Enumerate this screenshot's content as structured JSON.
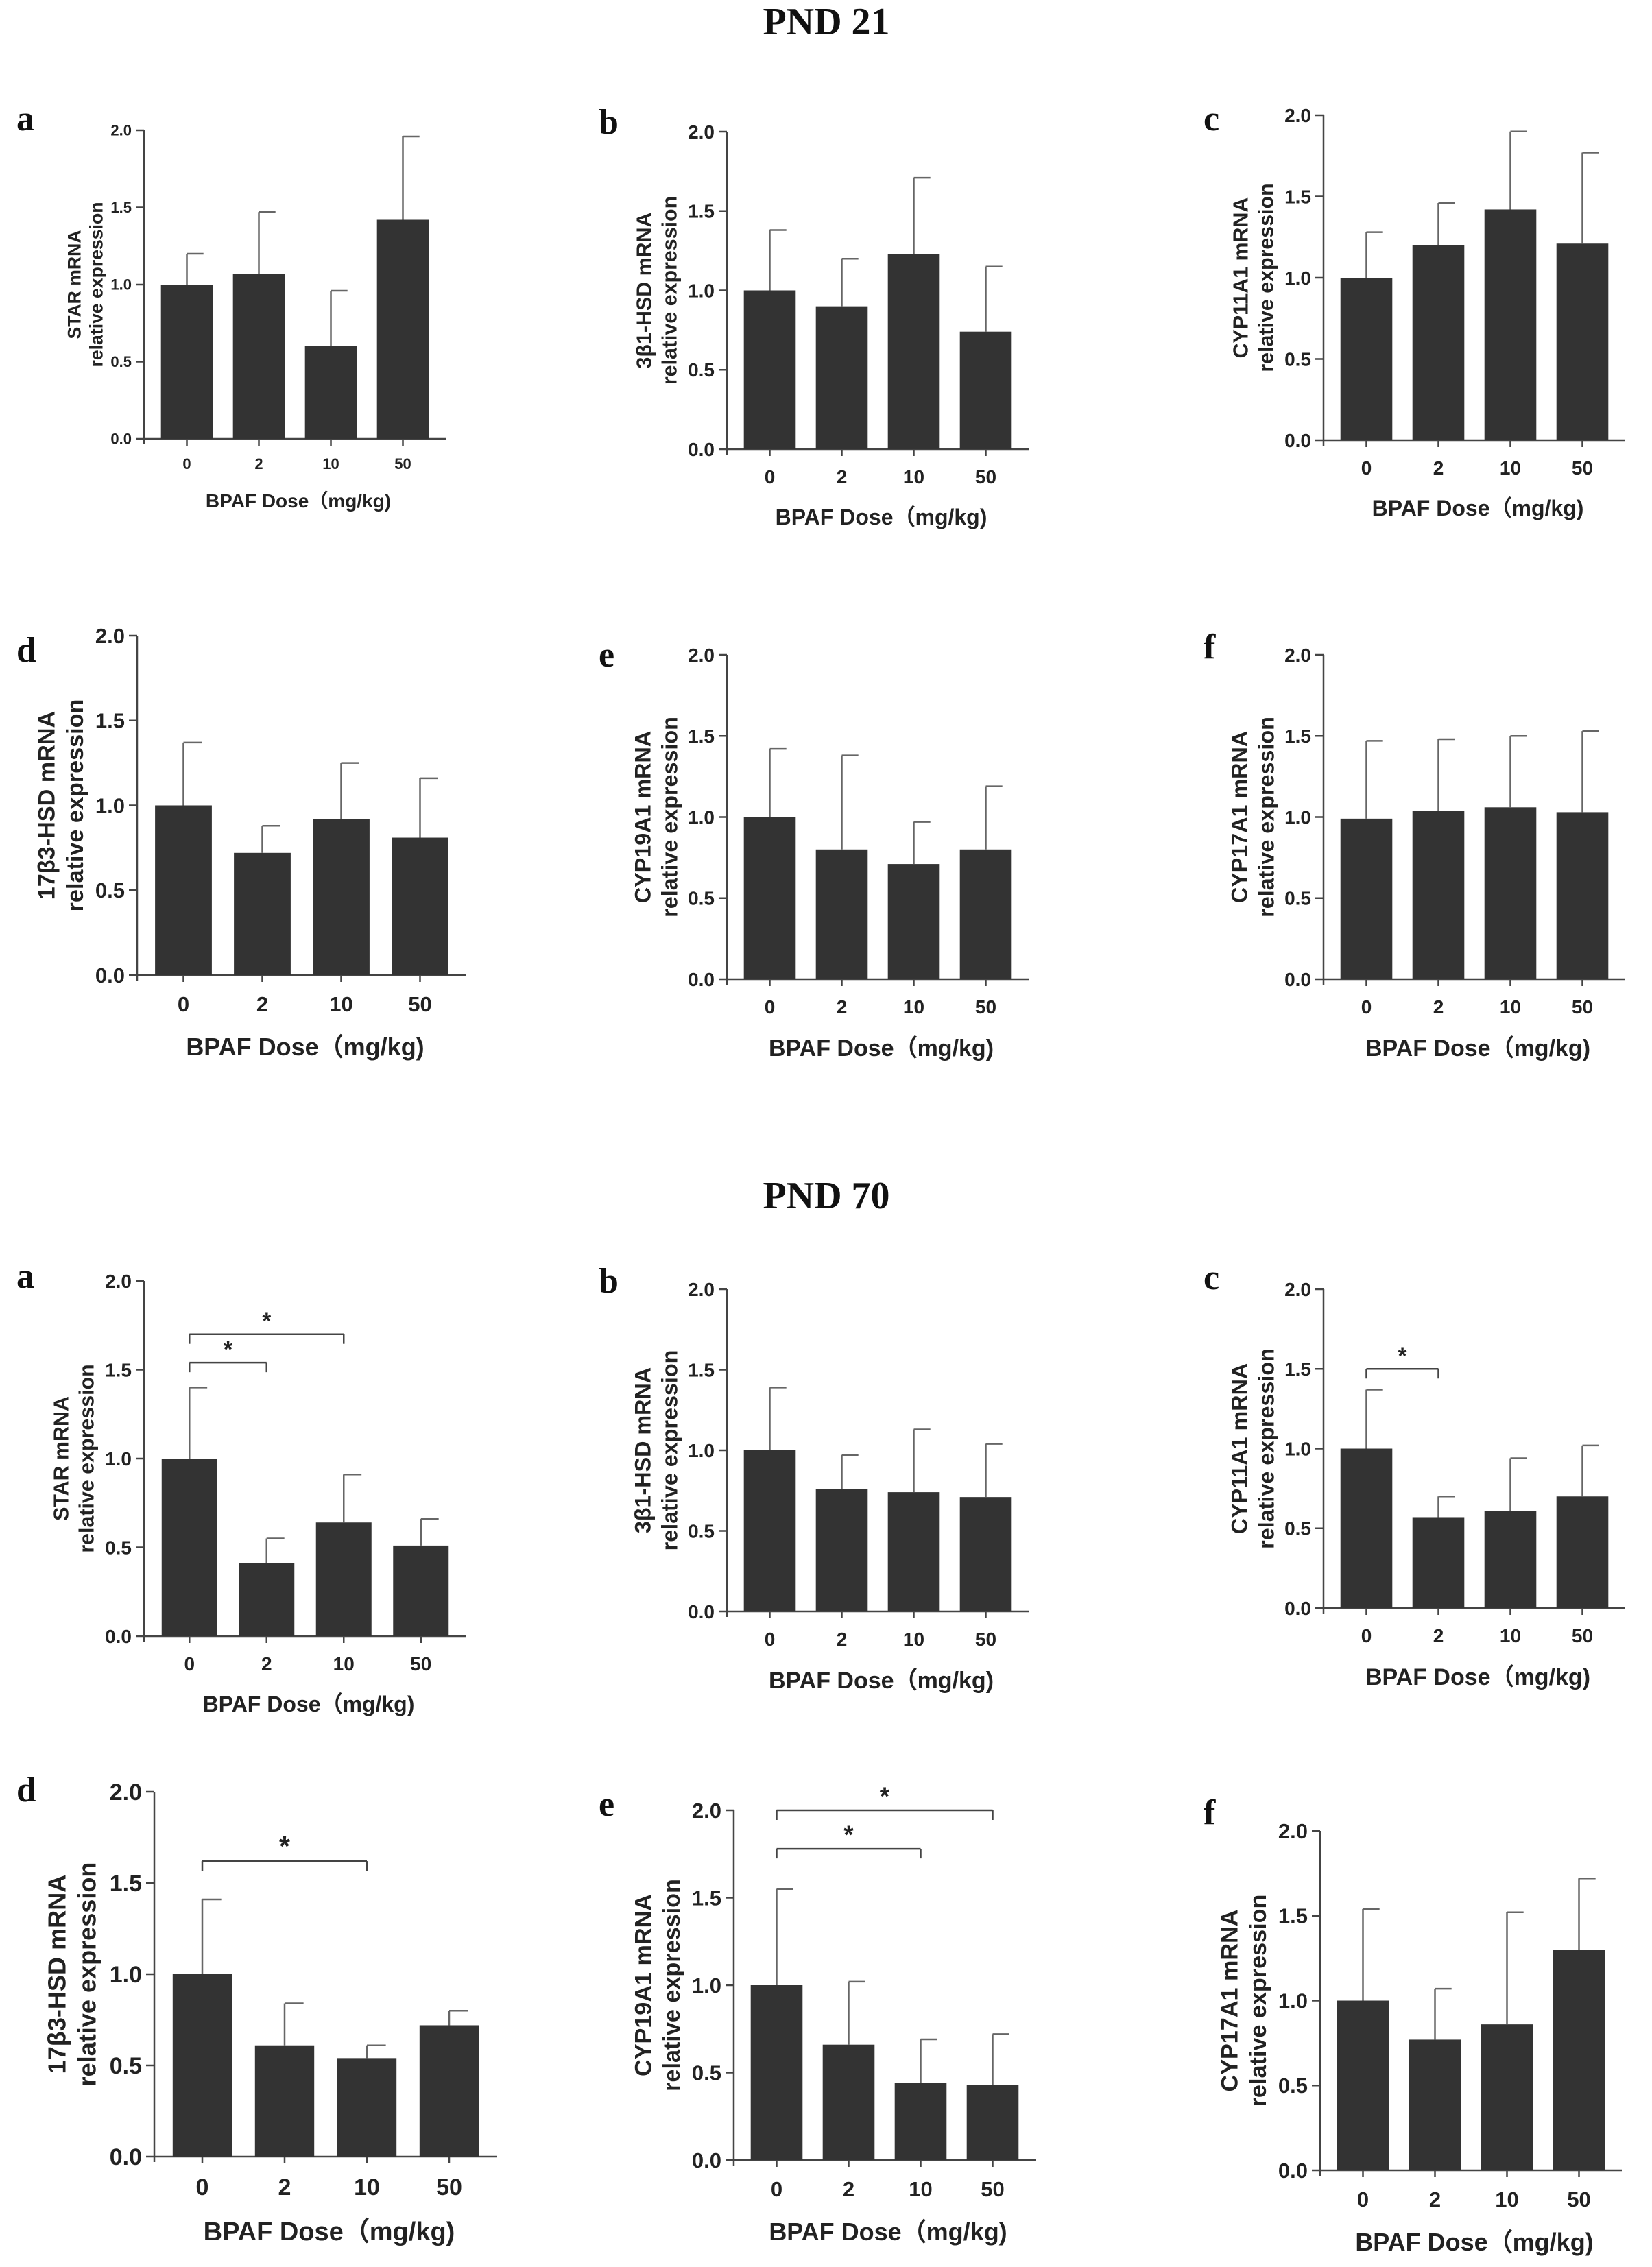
{
  "sections": [
    {
      "title": "PND 21"
    },
    {
      "title": "PND 70"
    }
  ],
  "colors": {
    "bar": "#333333",
    "axis": "#444444",
    "error": "#666666",
    "text": "#222222"
  },
  "chart_data": [
    {
      "type": "bar",
      "section": "PND 21",
      "letter": "a",
      "ylabel": [
        "STAR mRNA",
        "relative expression"
      ],
      "xlabel": "BPAF Dose（mg/kg)",
      "categories": [
        "0",
        "2",
        "10",
        "50"
      ],
      "values": [
        1.0,
        1.07,
        0.6,
        1.42
      ],
      "errors": [
        0.2,
        0.4,
        0.36,
        0.54
      ],
      "ylim": [
        0,
        2
      ],
      "yticks": [
        "0.0",
        "0.5",
        "1.0",
        "1.5",
        "2.0"
      ],
      "significance": []
    },
    {
      "type": "bar",
      "section": "PND 21",
      "letter": "b",
      "ylabel": [
        "3β1-HSD mRNA",
        "relative expression"
      ],
      "xlabel": "BPAF Dose（mg/kg)",
      "categories": [
        "0",
        "2",
        "10",
        "50"
      ],
      "values": [
        1.0,
        0.9,
        1.23,
        0.74
      ],
      "errors": [
        0.38,
        0.3,
        0.48,
        0.41
      ],
      "ylim": [
        0,
        2
      ],
      "yticks": [
        "0.0",
        "0.5",
        "1.0",
        "1.5",
        "2.0"
      ],
      "significance": []
    },
    {
      "type": "bar",
      "section": "PND 21",
      "letter": "c",
      "ylabel": [
        "CYP11A1 mRNA",
        "relative expression"
      ],
      "xlabel": "BPAF Dose（mg/kg)",
      "categories": [
        "0",
        "2",
        "10",
        "50"
      ],
      "values": [
        1.0,
        1.2,
        1.42,
        1.21
      ],
      "errors": [
        0.28,
        0.26,
        0.48,
        0.56
      ],
      "ylim": [
        0,
        2
      ],
      "yticks": [
        "0.0",
        "0.5",
        "1.0",
        "1.5",
        "2.0"
      ],
      "significance": []
    },
    {
      "type": "bar",
      "section": "PND 21",
      "letter": "d",
      "ylabel": [
        "17β3-HSD mRNA",
        "relative expression"
      ],
      "xlabel": "BPAF Dose（mg/kg)",
      "categories": [
        "0",
        "2",
        "10",
        "50"
      ],
      "values": [
        1.0,
        0.72,
        0.92,
        0.81
      ],
      "errors": [
        0.37,
        0.16,
        0.33,
        0.35
      ],
      "ylim": [
        0,
        2
      ],
      "yticks": [
        "0.0",
        "0.5",
        "1.0",
        "1.5",
        "2.0"
      ],
      "significance": []
    },
    {
      "type": "bar",
      "section": "PND 21",
      "letter": "e",
      "ylabel": [
        "CYP19A1 mRNA",
        "relative expression"
      ],
      "xlabel": "BPAF Dose（mg/kg)",
      "categories": [
        "0",
        "2",
        "10",
        "50"
      ],
      "values": [
        1.0,
        0.8,
        0.71,
        0.8
      ],
      "errors": [
        0.42,
        0.58,
        0.26,
        0.39
      ],
      "ylim": [
        0,
        2
      ],
      "yticks": [
        "0.0",
        "0.5",
        "1.0",
        "1.5",
        "2.0"
      ],
      "significance": []
    },
    {
      "type": "bar",
      "section": "PND 21",
      "letter": "f",
      "ylabel": [
        "CYP17A1 mRNA",
        "relative expression"
      ],
      "xlabel": "BPAF Dose（mg/kg)",
      "categories": [
        "0",
        "2",
        "10",
        "50"
      ],
      "values": [
        0.99,
        1.04,
        1.06,
        1.03
      ],
      "errors": [
        0.48,
        0.44,
        0.44,
        0.5
      ],
      "ylim": [
        0,
        2
      ],
      "yticks": [
        "0.0",
        "0.5",
        "1.0",
        "1.5",
        "2.0"
      ],
      "significance": []
    },
    {
      "type": "bar",
      "section": "PND 70",
      "letter": "a",
      "ylabel": [
        "STAR mRNA",
        "relative expression"
      ],
      "xlabel": "BPAF Dose（mg/kg)",
      "categories": [
        "0",
        "2",
        "10",
        "50"
      ],
      "values": [
        1.0,
        0.41,
        0.64,
        0.51
      ],
      "errors": [
        0.4,
        0.14,
        0.27,
        0.15
      ],
      "ylim": [
        0,
        2
      ],
      "yticks": [
        "0.0",
        "0.5",
        "1.0",
        "1.5",
        "2.0"
      ],
      "significance": [
        {
          "from": 0,
          "to": 2,
          "level": 1.7,
          "label": "*"
        },
        {
          "from": 0,
          "to": 1,
          "level": 1.54,
          "label": "*"
        }
      ]
    },
    {
      "type": "bar",
      "section": "PND 70",
      "letter": "b",
      "ylabel": [
        "3β1-HSD mRNA",
        "relative expression"
      ],
      "xlabel": "BPAF Dose（mg/kg)",
      "categories": [
        "0",
        "2",
        "10",
        "50"
      ],
      "values": [
        1.0,
        0.76,
        0.74,
        0.71
      ],
      "errors": [
        0.39,
        0.21,
        0.39,
        0.33
      ],
      "ylim": [
        0,
        2
      ],
      "yticks": [
        "0.0",
        "0.5",
        "1.0",
        "1.5",
        "2.0"
      ],
      "significance": []
    },
    {
      "type": "bar",
      "section": "PND 70",
      "letter": "c",
      "ylabel": [
        "CYP11A1 mRNA",
        "relative expression"
      ],
      "xlabel": "BPAF Dose（mg/kg)",
      "categories": [
        "0",
        "2",
        "10",
        "50"
      ],
      "values": [
        1.0,
        0.57,
        0.61,
        0.7
      ],
      "errors": [
        0.37,
        0.13,
        0.33,
        0.32
      ],
      "ylim": [
        0,
        2
      ],
      "yticks": [
        "0.0",
        "0.5",
        "1.0",
        "1.5",
        "2.0"
      ],
      "significance": [
        {
          "from": 0,
          "to": 1,
          "level": 1.5,
          "label": "*"
        }
      ]
    },
    {
      "type": "bar",
      "section": "PND 70",
      "letter": "d",
      "ylabel": [
        "17β3-HSD mRNA",
        "relative expression"
      ],
      "xlabel": "BPAF Dose（mg/kg)",
      "categories": [
        "0",
        "2",
        "10",
        "50"
      ],
      "values": [
        1.0,
        0.61,
        0.54,
        0.72
      ],
      "errors": [
        0.41,
        0.23,
        0.07,
        0.08
      ],
      "ylim": [
        0,
        2
      ],
      "yticks": [
        "0.0",
        "0.5",
        "1.0",
        "1.5",
        "2.0"
      ],
      "significance": [
        {
          "from": 0,
          "to": 2,
          "level": 1.62,
          "label": "*"
        }
      ]
    },
    {
      "type": "bar",
      "section": "PND 70",
      "letter": "e",
      "ylabel": [
        "CYP19A1 mRNA",
        "relative expression"
      ],
      "xlabel": "BPAF Dose（mg/kg)",
      "categories": [
        "0",
        "2",
        "10",
        "50"
      ],
      "values": [
        1.0,
        0.66,
        0.44,
        0.43
      ],
      "errors": [
        0.55,
        0.36,
        0.25,
        0.29
      ],
      "ylim": [
        0,
        2
      ],
      "yticks": [
        "0.0",
        "0.5",
        "1.0",
        "1.5",
        "2.0"
      ],
      "significance": [
        {
          "from": 0,
          "to": 3,
          "level": 2.0,
          "label": "*"
        },
        {
          "from": 0,
          "to": 2,
          "level": 1.78,
          "label": "*"
        }
      ]
    },
    {
      "type": "bar",
      "section": "PND 70",
      "letter": "f",
      "ylabel": [
        "CYP17A1 mRNA",
        "relative expression"
      ],
      "xlabel": "BPAF Dose（mg/kg)",
      "categories": [
        "0",
        "2",
        "10",
        "50"
      ],
      "values": [
        1.0,
        0.77,
        0.86,
        1.3
      ],
      "errors": [
        0.54,
        0.3,
        0.66,
        0.42
      ],
      "ylim": [
        0,
        2
      ],
      "yticks": [
        "0.0",
        "0.5",
        "1.0",
        "1.5",
        "2.0"
      ],
      "significance": []
    }
  ]
}
